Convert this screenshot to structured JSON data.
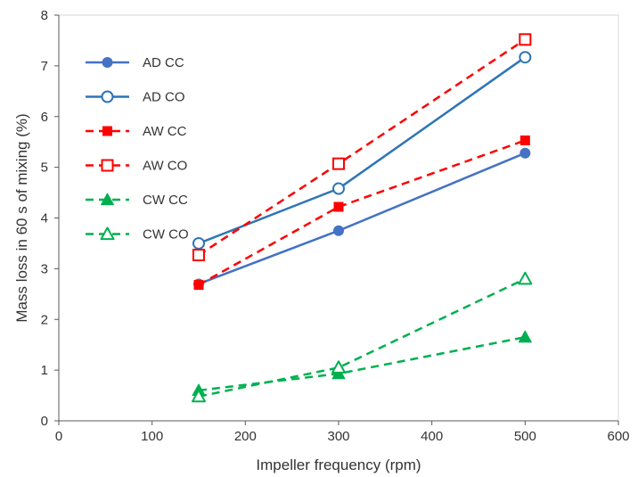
{
  "chart_data": {
    "type": "line",
    "title": "",
    "xlabel": "Impeller frequency (rpm)",
    "ylabel": "Mass loss in 60 s of mixing (%)",
    "xlim": [
      0,
      600
    ],
    "ylim": [
      0,
      8
    ],
    "xticks": [
      0,
      100,
      200,
      300,
      400,
      500,
      600
    ],
    "yticks": [
      0,
      1,
      2,
      3,
      4,
      5,
      6,
      7,
      8
    ],
    "grid": false,
    "legend_position": "top-left",
    "x": [
      150,
      300,
      500
    ],
    "series": [
      {
        "name": "AD CC",
        "values": [
          2.7,
          3.75,
          5.28
        ],
        "color": "#4472c4",
        "marker": "circle",
        "filled": true,
        "dash": "solid"
      },
      {
        "name": "AD CO",
        "values": [
          3.5,
          4.58,
          7.17
        ],
        "color": "#2e75b6",
        "marker": "circle",
        "filled": false,
        "dash": "solid"
      },
      {
        "name": "AW CC",
        "values": [
          2.68,
          4.22,
          5.53
        ],
        "color": "#ff0000",
        "marker": "square",
        "filled": true,
        "dash": "dashed"
      },
      {
        "name": "AW CO",
        "values": [
          3.27,
          5.07,
          7.52
        ],
        "color": "#ff0000",
        "marker": "square",
        "filled": false,
        "dash": "dashed"
      },
      {
        "name": "CW CC",
        "values": [
          0.6,
          0.93,
          1.65
        ],
        "color": "#00b050",
        "marker": "triangle",
        "filled": true,
        "dash": "dashed"
      },
      {
        "name": "CW CO",
        "values": [
          0.48,
          1.05,
          2.8
        ],
        "color": "#00b050",
        "marker": "triangle",
        "filled": false,
        "dash": "dashed"
      }
    ]
  }
}
